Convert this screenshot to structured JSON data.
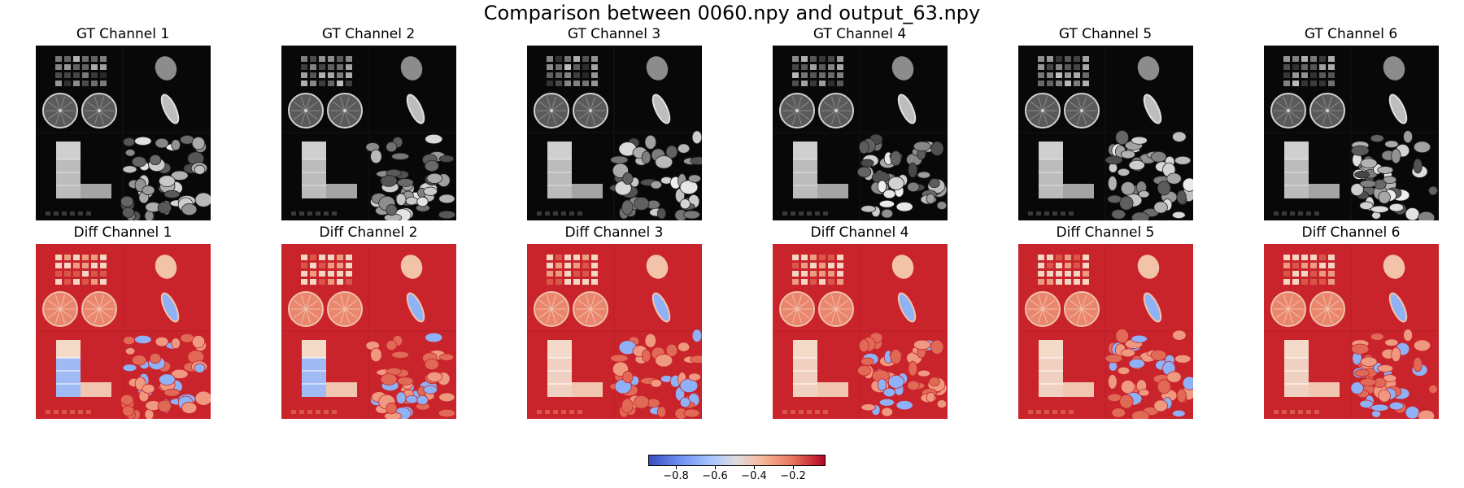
{
  "figure_title": "Comparison between 0060.npy and output_63.npy",
  "gt_titles": [
    "GT Channel 1",
    "GT Channel 2",
    "GT Channel 3",
    "GT Channel 4",
    "GT Channel 5",
    "GT Channel 6"
  ],
  "diff_titles": [
    "Diff Channel 1",
    "Diff Channel 2",
    "Diff Channel 3",
    "Diff Channel 4",
    "Diff Channel 5",
    "Diff Channel 6"
  ],
  "colorbar": {
    "colormap": "coolwarm",
    "tick_labels": [
      "−0.8",
      "−0.6",
      "−0.4",
      "−0.2"
    ],
    "tick_values": [
      -0.8,
      -0.6,
      -0.4,
      -0.2
    ],
    "range": [
      -0.95,
      -0.05
    ]
  },
  "colors": {
    "gt_background": "#080808",
    "diff_background": "#c9242c",
    "diff_blue": "#8fb1f5",
    "diff_light": "#f2b9a0"
  }
}
